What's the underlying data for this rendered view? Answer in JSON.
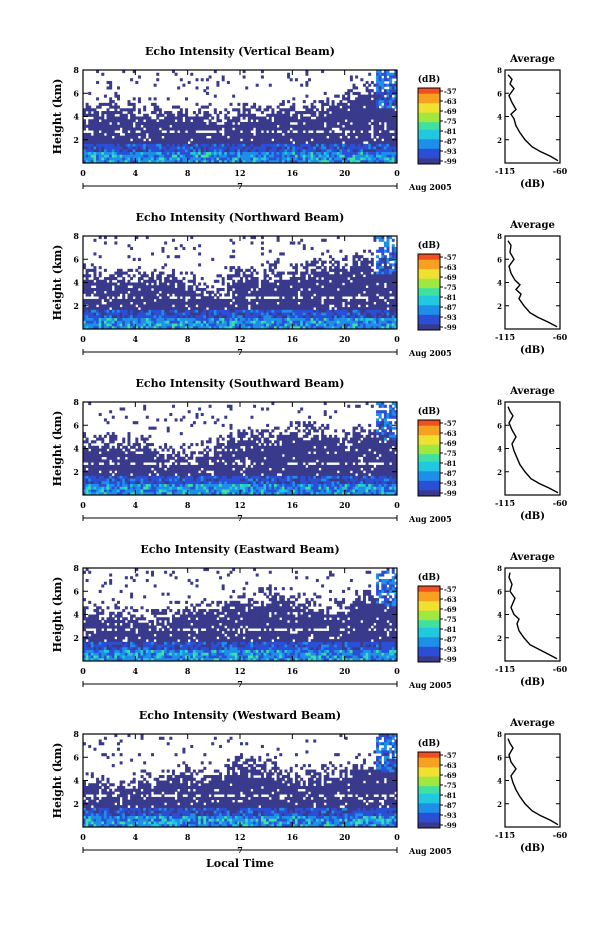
{
  "chart_data": [
    {
      "type": "heatmap",
      "title": "Echo Intensity (Vertical Beam)",
      "ylabel": "Height (km)",
      "y_ticks": [
        "2",
        "4",
        "6",
        "8"
      ],
      "ylim": [
        0,
        8
      ],
      "x_ticks": [
        "0",
        "4",
        "8",
        "12",
        "16",
        "20",
        "0"
      ],
      "xlim": [
        0,
        24
      ],
      "date_marker": "7",
      "date_label": "Aug 2005",
      "colorbar": {
        "label": "(dB)",
        "levels": [
          "-57",
          "-63",
          "-69",
          "-75",
          "-81",
          "-87",
          "-93",
          "-99"
        ]
      },
      "profile": {
        "title": "Average",
        "xlabel": "(dB)",
        "x_ticks": [
          "-115",
          "-60"
        ],
        "y_ticks": [
          "2",
          "4",
          "6",
          "8"
        ],
        "xlim": [
          -115,
          -60
        ],
        "ylim": [
          0,
          8
        ],
        "points": [
          [
            -62,
            0.2
          ],
          [
            -70,
            0.6
          ],
          [
            -80,
            1.0
          ],
          [
            -88,
            1.4
          ],
          [
            -95,
            2.0
          ],
          [
            -100,
            2.6
          ],
          [
            -104,
            3.2
          ],
          [
            -106,
            3.8
          ],
          [
            -109,
            4.2
          ],
          [
            -104,
            4.6
          ],
          [
            -108,
            5.2
          ],
          [
            -111,
            5.8
          ],
          [
            -106,
            6.4
          ],
          [
            -110,
            6.8
          ],
          [
            -108,
            7.2
          ],
          [
            -112,
            7.6
          ]
        ]
      }
    },
    {
      "type": "heatmap",
      "title": "Echo Intensity (Northward Beam)",
      "ylabel": "Height (km)",
      "y_ticks": [
        "2",
        "4",
        "6",
        "8"
      ],
      "ylim": [
        0,
        8
      ],
      "x_ticks": [
        "0",
        "4",
        "8",
        "12",
        "16",
        "20",
        "0"
      ],
      "xlim": [
        0,
        24
      ],
      "date_marker": "7",
      "date_label": "Aug 2005",
      "colorbar": {
        "label": "(dB)",
        "levels": [
          "-57",
          "-63",
          "-69",
          "-75",
          "-81",
          "-87",
          "-93",
          "-99"
        ]
      },
      "profile": {
        "title": "Average",
        "xlabel": "(dB)",
        "x_ticks": [
          "-115",
          "-60"
        ],
        "y_ticks": [
          "2",
          "4",
          "6",
          "8"
        ],
        "xlim": [
          -115,
          -60
        ],
        "ylim": [
          0,
          8
        ],
        "points": [
          [
            -63,
            0.2
          ],
          [
            -72,
            0.6
          ],
          [
            -82,
            1.0
          ],
          [
            -90,
            1.4
          ],
          [
            -96,
            2.0
          ],
          [
            -101,
            2.6
          ],
          [
            -99,
            3.0
          ],
          [
            -104,
            3.4
          ],
          [
            -100,
            3.8
          ],
          [
            -105,
            4.2
          ],
          [
            -109,
            4.8
          ],
          [
            -111,
            5.4
          ],
          [
            -106,
            6.0
          ],
          [
            -110,
            6.6
          ],
          [
            -109,
            7.2
          ],
          [
            -112,
            7.6
          ]
        ]
      }
    },
    {
      "type": "heatmap",
      "title": "Echo Intensity (Southward Beam)",
      "ylabel": "Height (km)",
      "y_ticks": [
        "2",
        "4",
        "6",
        "8"
      ],
      "ylim": [
        0,
        8
      ],
      "x_ticks": [
        "0",
        "4",
        "8",
        "12",
        "16",
        "20",
        "0"
      ],
      "xlim": [
        0,
        24
      ],
      "date_marker": "7",
      "date_label": "Aug 2005",
      "colorbar": {
        "label": "(dB)",
        "levels": [
          "-57",
          "-63",
          "-69",
          "-75",
          "-81",
          "-87",
          "-93",
          "-99"
        ]
      },
      "profile": {
        "title": "Average",
        "xlabel": "(dB)",
        "x_ticks": [
          "-115",
          "-60"
        ],
        "y_ticks": [
          "2",
          "4",
          "6",
          "8"
        ],
        "xlim": [
          -115,
          -60
        ],
        "ylim": [
          0,
          8
        ],
        "points": [
          [
            -62,
            0.2
          ],
          [
            -71,
            0.6
          ],
          [
            -81,
            1.0
          ],
          [
            -89,
            1.4
          ],
          [
            -95,
            2.0
          ],
          [
            -100,
            2.6
          ],
          [
            -103,
            3.2
          ],
          [
            -106,
            3.8
          ],
          [
            -108,
            4.4
          ],
          [
            -104,
            5.0
          ],
          [
            -108,
            5.6
          ],
          [
            -111,
            6.2
          ],
          [
            -107,
            6.8
          ],
          [
            -110,
            7.2
          ],
          [
            -112,
            7.6
          ]
        ]
      }
    },
    {
      "type": "heatmap",
      "title": "Echo Intensity (Eastward Beam)",
      "ylabel": "Height (km)",
      "y_ticks": [
        "2",
        "4",
        "6",
        "8"
      ],
      "ylim": [
        0,
        8
      ],
      "x_ticks": [
        "0",
        "4",
        "8",
        "12",
        "16",
        "20",
        "0"
      ],
      "xlim": [
        0,
        24
      ],
      "date_marker": "7",
      "date_label": "Aug 2005",
      "colorbar": {
        "label": "(dB)",
        "levels": [
          "-57",
          "-63",
          "-69",
          "-75",
          "-81",
          "-87",
          "-93",
          "-99"
        ]
      },
      "profile": {
        "title": "Average",
        "xlabel": "(dB)",
        "x_ticks": [
          "-115",
          "-60"
        ],
        "y_ticks": [
          "2",
          "4",
          "6",
          "8"
        ],
        "xlim": [
          -115,
          -60
        ],
        "ylim": [
          0,
          8
        ],
        "points": [
          [
            -63,
            0.2
          ],
          [
            -72,
            0.6
          ],
          [
            -81,
            1.0
          ],
          [
            -90,
            1.4
          ],
          [
            -96,
            2.0
          ],
          [
            -101,
            2.6
          ],
          [
            -103,
            3.2
          ],
          [
            -101,
            3.6
          ],
          [
            -106,
            4.0
          ],
          [
            -109,
            4.6
          ],
          [
            -105,
            5.4
          ],
          [
            -110,
            6.0
          ],
          [
            -108,
            6.6
          ],
          [
            -111,
            7.2
          ],
          [
            -110,
            7.6
          ]
        ]
      }
    },
    {
      "type": "heatmap",
      "title": "Echo Intensity (Westward Beam)",
      "ylabel": "Height (km)",
      "y_ticks": [
        "2",
        "4",
        "6",
        "8"
      ],
      "ylim": [
        0,
        8
      ],
      "x_ticks": [
        "0",
        "4",
        "8",
        "12",
        "16",
        "20",
        "0"
      ],
      "xlim": [
        0,
        24
      ],
      "date_marker": "7",
      "date_label": "Aug 2005",
      "x_axis_label": "Local Time",
      "colorbar": {
        "label": "(dB)",
        "levels": [
          "-57",
          "-63",
          "-69",
          "-75",
          "-81",
          "-87",
          "-93",
          "-99"
        ]
      },
      "profile": {
        "title": "Average",
        "xlabel": "(dB)",
        "x_ticks": [
          "-115",
          "-60"
        ],
        "y_ticks": [
          "2",
          "4",
          "6",
          "8"
        ],
        "xlim": [
          -115,
          -60
        ],
        "ylim": [
          0,
          8
        ],
        "points": [
          [
            -62,
            0.2
          ],
          [
            -70,
            0.6
          ],
          [
            -80,
            1.0
          ],
          [
            -88,
            1.4
          ],
          [
            -95,
            2.0
          ],
          [
            -100,
            2.6
          ],
          [
            -104,
            3.2
          ],
          [
            -107,
            3.8
          ],
          [
            -109,
            4.4
          ],
          [
            -104,
            5.0
          ],
          [
            -109,
            5.6
          ],
          [
            -111,
            6.2
          ],
          [
            -107,
            6.8
          ],
          [
            -110,
            7.2
          ],
          [
            -112,
            7.6
          ]
        ]
      }
    }
  ],
  "colors": {
    "colormap": [
      "#3a3a8c",
      "#2a4fd6",
      "#1e8fe8",
      "#20c8e0",
      "#40e0a0",
      "#a0e840",
      "#f0e030",
      "#f8a020",
      "#f05020"
    ],
    "axis": "#000000"
  }
}
